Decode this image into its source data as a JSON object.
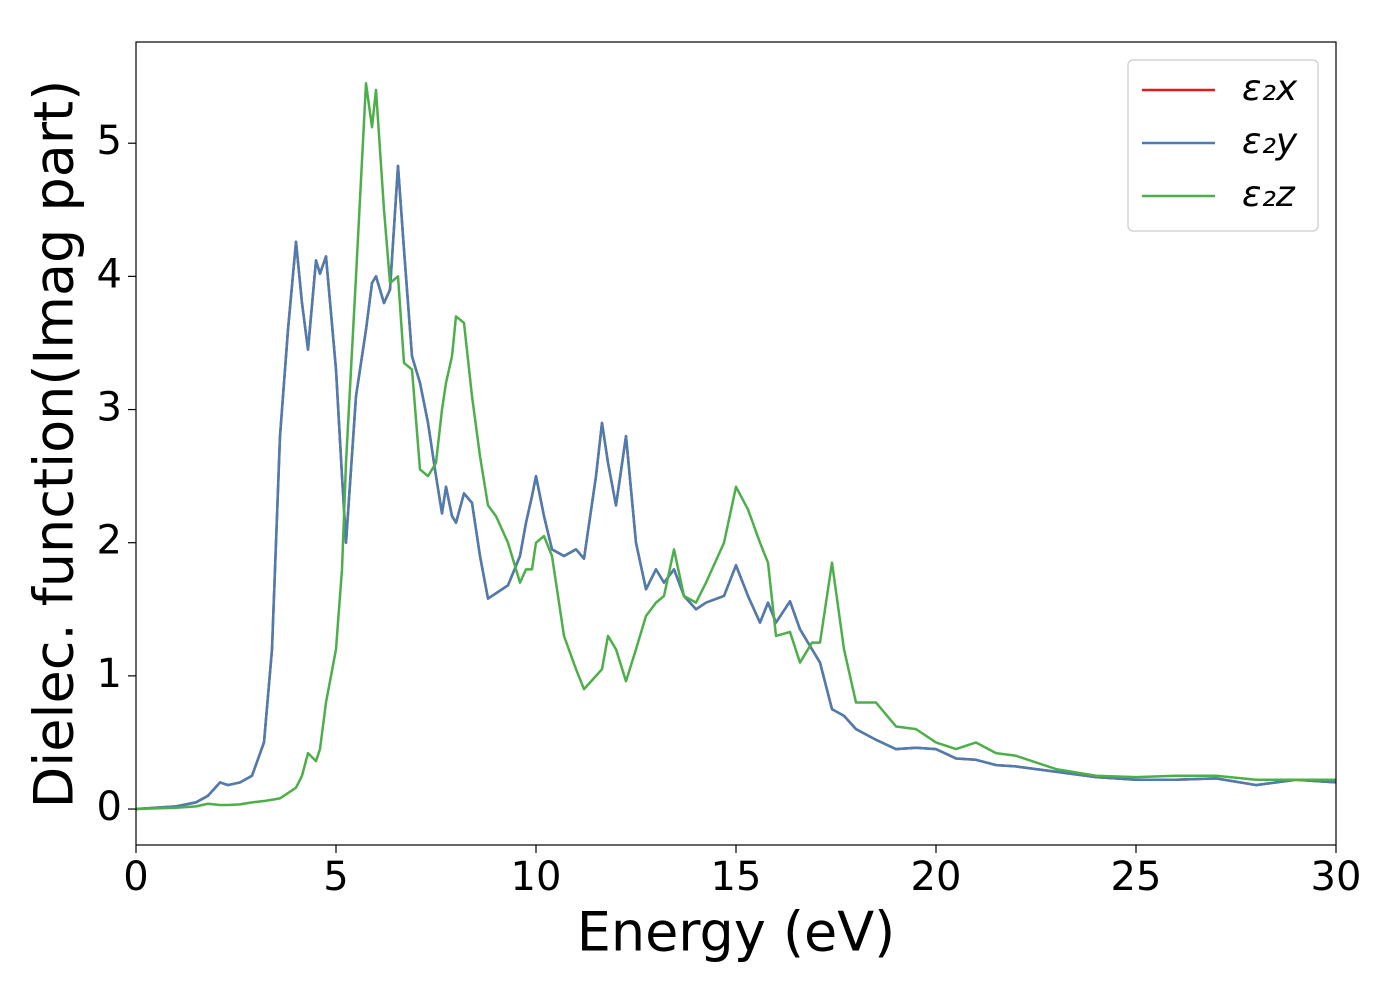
{
  "chart_data": {
    "type": "line",
    "xlabel": "Energy (eV)",
    "ylabel": "Dielec. function(Imag part)",
    "x": [
      0,
      1,
      1.5,
      1.8,
      2.1,
      2.3,
      2.6,
      2.9,
      3.2,
      3.4,
      3.6,
      3.8,
      4.0,
      4.15,
      4.3,
      4.5,
      4.6,
      4.75,
      5.0,
      5.15,
      5.25,
      5.5,
      5.75,
      5.9,
      6.0,
      6.2,
      6.35,
      6.55,
      6.7,
      6.9,
      7.1,
      7.3,
      7.5,
      7.65,
      7.75,
      7.9,
      8.0,
      8.2,
      8.4,
      8.6,
      8.8,
      9.0,
      9.3,
      9.6,
      9.75,
      9.9,
      10.0,
      10.2,
      10.4,
      10.7,
      11.0,
      11.2,
      11.5,
      11.65,
      11.8,
      12.0,
      12.25,
      12.5,
      12.75,
      13.0,
      13.2,
      13.45,
      13.7,
      14.0,
      14.25,
      14.7,
      15.0,
      15.3,
      15.6,
      15.8,
      16.0,
      16.35,
      16.6,
      16.9,
      17.1,
      17.4,
      17.7,
      18.0,
      18.5,
      19.0,
      19.5,
      20.0,
      20.5,
      21.0,
      21.5,
      22.0,
      23.0,
      24.0,
      25.0,
      26.0,
      27.0,
      28.0,
      29.0,
      30.0
    ],
    "series": [
      {
        "name": "ε₂x",
        "color": "#e41a1c",
        "values": [
          0,
          0.02,
          0.05,
          0.1,
          0.2,
          0.18,
          0.2,
          0.25,
          0.5,
          1.2,
          2.8,
          3.6,
          4.26,
          3.8,
          3.45,
          4.12,
          4.02,
          4.15,
          3.3,
          2.5,
          2.0,
          3.1,
          3.6,
          3.95,
          4.0,
          3.8,
          3.9,
          4.83,
          4.2,
          3.4,
          3.2,
          2.9,
          2.5,
          2.22,
          2.42,
          2.2,
          2.15,
          2.37,
          2.3,
          1.9,
          1.58,
          1.62,
          1.68,
          1.9,
          2.15,
          2.35,
          2.5,
          2.2,
          1.95,
          1.9,
          1.95,
          1.88,
          2.5,
          2.9,
          2.6,
          2.28,
          2.8,
          2.0,
          1.65,
          1.8,
          1.7,
          1.8,
          1.6,
          1.5,
          1.55,
          1.6,
          1.83,
          1.6,
          1.4,
          1.55,
          1.4,
          1.56,
          1.35,
          1.2,
          1.1,
          0.75,
          0.7,
          0.6,
          0.52,
          0.45,
          0.46,
          0.45,
          0.38,
          0.37,
          0.33,
          0.32,
          0.28,
          0.24,
          0.22,
          0.22,
          0.23,
          0.18,
          0.22,
          0.2
        ]
      },
      {
        "name": "ε₂y",
        "color": "#4a7eb0",
        "values": [
          0,
          0.02,
          0.05,
          0.1,
          0.2,
          0.18,
          0.2,
          0.25,
          0.5,
          1.2,
          2.8,
          3.6,
          4.26,
          3.8,
          3.45,
          4.12,
          4.02,
          4.15,
          3.3,
          2.5,
          2.0,
          3.1,
          3.6,
          3.95,
          4.0,
          3.8,
          3.9,
          4.83,
          4.2,
          3.4,
          3.2,
          2.9,
          2.5,
          2.22,
          2.42,
          2.2,
          2.15,
          2.37,
          2.3,
          1.9,
          1.58,
          1.62,
          1.68,
          1.9,
          2.15,
          2.35,
          2.5,
          2.2,
          1.95,
          1.9,
          1.95,
          1.88,
          2.5,
          2.9,
          2.6,
          2.28,
          2.8,
          2.0,
          1.65,
          1.8,
          1.7,
          1.8,
          1.6,
          1.5,
          1.55,
          1.6,
          1.83,
          1.6,
          1.4,
          1.55,
          1.4,
          1.56,
          1.35,
          1.2,
          1.1,
          0.75,
          0.7,
          0.6,
          0.52,
          0.45,
          0.46,
          0.45,
          0.38,
          0.37,
          0.33,
          0.32,
          0.28,
          0.24,
          0.22,
          0.22,
          0.23,
          0.18,
          0.22,
          0.2
        ]
      },
      {
        "name": "ε₂z",
        "color": "#4daf4a",
        "values": [
          0,
          0.01,
          0.02,
          0.04,
          0.03,
          0.03,
          0.035,
          0.05,
          0.06,
          0.07,
          0.08,
          0.12,
          0.16,
          0.25,
          0.42,
          0.36,
          0.45,
          0.8,
          1.2,
          1.8,
          2.6,
          4.0,
          5.45,
          5.12,
          5.4,
          4.5,
          3.95,
          4.0,
          3.35,
          3.3,
          2.55,
          2.5,
          2.6,
          3.0,
          3.2,
          3.4,
          3.7,
          3.65,
          3.1,
          2.65,
          2.28,
          2.2,
          2.0,
          1.7,
          1.8,
          1.8,
          2.0,
          2.05,
          1.9,
          1.3,
          1.05,
          0.9,
          1.0,
          1.05,
          1.3,
          1.2,
          0.96,
          1.2,
          1.45,
          1.55,
          1.6,
          1.95,
          1.6,
          1.55,
          1.7,
          2.0,
          2.42,
          2.25,
          2.0,
          1.85,
          1.3,
          1.33,
          1.1,
          1.25,
          1.25,
          1.85,
          1.2,
          0.8,
          0.8,
          0.62,
          0.6,
          0.5,
          0.45,
          0.5,
          0.42,
          0.4,
          0.3,
          0.25,
          0.24,
          0.25,
          0.25,
          0.22,
          0.22,
          0.22
        ]
      }
    ],
    "xlim": [
      0,
      30
    ],
    "xticks": [
      0,
      5,
      10,
      15,
      20,
      25,
      30
    ],
    "ylim": [
      -0.27,
      5.76
    ],
    "yticks": [
      0,
      1,
      2,
      3,
      4,
      5
    ],
    "legend": "upper right"
  }
}
